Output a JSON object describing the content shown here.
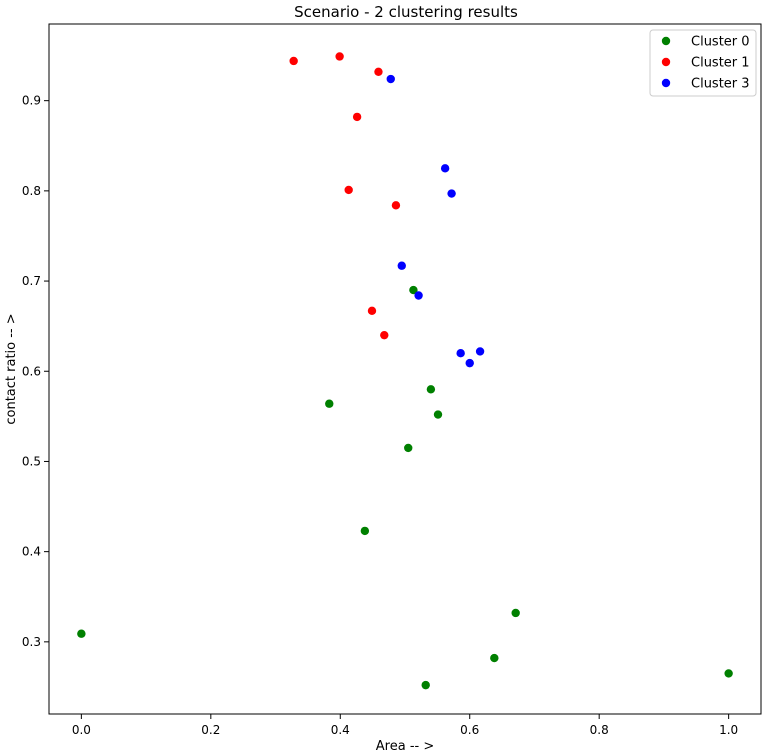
{
  "chart_data": {
    "type": "scatter",
    "title": "Scenario - 2 clustering results",
    "xlabel": "Area -- >",
    "ylabel": "contact ratio -- >",
    "xlim": [
      -0.05,
      1.05
    ],
    "ylim": [
      0.22,
      0.985
    ],
    "xticks": [
      0.0,
      0.2,
      0.4,
      0.6,
      0.8,
      1.0
    ],
    "xtick_labels": [
      "0.0",
      "0.2",
      "0.4",
      "0.6",
      "0.8",
      "1.0"
    ],
    "yticks": [
      0.3,
      0.4,
      0.5,
      0.6,
      0.7,
      0.8,
      0.9
    ],
    "ytick_labels": [
      "0.3",
      "0.4",
      "0.5",
      "0.6",
      "0.7",
      "0.8",
      "0.9"
    ],
    "grid": false,
    "legend_position": "top-right",
    "series": [
      {
        "name": "Cluster 0",
        "color": "#008000",
        "points": [
          {
            "x": 0.0,
            "y": 0.309
          },
          {
            "x": 0.383,
            "y": 0.564
          },
          {
            "x": 0.438,
            "y": 0.423
          },
          {
            "x": 0.505,
            "y": 0.515
          },
          {
            "x": 0.513,
            "y": 0.69
          },
          {
            "x": 0.54,
            "y": 0.58
          },
          {
            "x": 0.551,
            "y": 0.552
          },
          {
            "x": 0.532,
            "y": 0.252
          },
          {
            "x": 0.638,
            "y": 0.282
          },
          {
            "x": 0.671,
            "y": 0.332
          },
          {
            "x": 1.0,
            "y": 0.265
          }
        ]
      },
      {
        "name": "Cluster 1",
        "color": "#ff0000",
        "points": [
          {
            "x": 0.328,
            "y": 0.944
          },
          {
            "x": 0.399,
            "y": 0.949
          },
          {
            "x": 0.459,
            "y": 0.932
          },
          {
            "x": 0.426,
            "y": 0.882
          },
          {
            "x": 0.413,
            "y": 0.801
          },
          {
            "x": 0.486,
            "y": 0.784
          },
          {
            "x": 0.449,
            "y": 0.667
          },
          {
            "x": 0.468,
            "y": 0.64
          }
        ]
      },
      {
        "name": "Cluster 3",
        "color": "#0000ff",
        "points": [
          {
            "x": 0.478,
            "y": 0.924
          },
          {
            "x": 0.562,
            "y": 0.825
          },
          {
            "x": 0.572,
            "y": 0.797
          },
          {
            "x": 0.495,
            "y": 0.717
          },
          {
            "x": 0.521,
            "y": 0.684
          },
          {
            "x": 0.586,
            "y": 0.62
          },
          {
            "x": 0.616,
            "y": 0.622
          },
          {
            "x": 0.6,
            "y": 0.609
          }
        ]
      }
    ]
  }
}
